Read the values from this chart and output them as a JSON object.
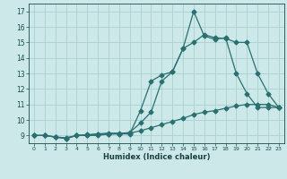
{
  "title": "",
  "xlabel": "Humidex (Indice chaleur)",
  "ylabel": "",
  "background_color": "#cce8e8",
  "grid_color": "#aad0d0",
  "line_color": "#2a7070",
  "xlim": [
    -0.5,
    23.5
  ],
  "ylim": [
    8.5,
    17.5
  ],
  "xticks": [
    0,
    1,
    2,
    3,
    4,
    5,
    6,
    7,
    8,
    9,
    10,
    11,
    12,
    13,
    14,
    15,
    16,
    17,
    18,
    19,
    20,
    21,
    22,
    23
  ],
  "yticks": [
    9,
    10,
    11,
    12,
    13,
    14,
    15,
    16,
    17
  ],
  "series1_x": [
    0,
    1,
    2,
    3,
    4,
    5,
    6,
    7,
    8,
    9,
    10,
    11,
    12,
    13,
    14,
    15,
    16,
    17,
    18,
    19,
    20,
    21,
    22,
    23
  ],
  "series1_y": [
    9.0,
    9.0,
    8.9,
    8.8,
    9.0,
    9.0,
    9.0,
    9.1,
    9.1,
    9.1,
    10.6,
    12.5,
    12.9,
    13.1,
    14.6,
    17.0,
    15.4,
    15.2,
    15.3,
    13.0,
    11.7,
    10.8,
    10.8,
    10.8
  ],
  "series2_x": [
    0,
    1,
    2,
    3,
    4,
    5,
    6,
    7,
    8,
    9,
    10,
    11,
    12,
    13,
    14,
    15,
    16,
    17,
    18,
    19,
    20,
    21,
    22,
    23
  ],
  "series2_y": [
    9.0,
    9.0,
    8.9,
    8.8,
    9.0,
    9.0,
    9.1,
    9.1,
    9.1,
    9.2,
    9.8,
    10.5,
    12.5,
    13.1,
    14.6,
    15.0,
    15.5,
    15.3,
    15.25,
    15.0,
    15.0,
    13.0,
    11.7,
    10.8
  ],
  "series3_x": [
    0,
    1,
    2,
    3,
    4,
    5,
    6,
    7,
    8,
    9,
    10,
    11,
    12,
    13,
    14,
    15,
    16,
    17,
    18,
    19,
    20,
    21,
    22,
    23
  ],
  "series3_y": [
    9.0,
    9.0,
    8.9,
    8.85,
    9.0,
    9.05,
    9.1,
    9.15,
    9.15,
    9.15,
    9.3,
    9.5,
    9.7,
    9.9,
    10.1,
    10.35,
    10.5,
    10.6,
    10.75,
    10.9,
    11.0,
    11.0,
    11.0,
    10.8
  ]
}
